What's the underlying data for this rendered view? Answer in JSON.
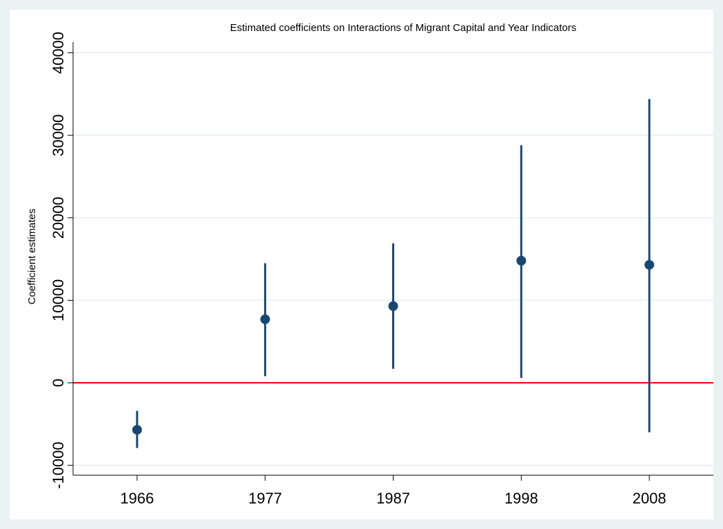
{
  "chart_data": {
    "type": "errorbar",
    "title": "Estimated coefficients on Interactions of Migrant Capital and Year Indicators",
    "y_label": "Coefficient estimates",
    "categories": [
      "1966",
      "1977",
      "1987",
      "1998",
      "2008"
    ],
    "series": [
      {
        "color": "#1a476f",
        "values": [
          -5700,
          7700,
          9300,
          14800,
          14300
        ],
        "lower": [
          -7900,
          800,
          1700,
          600,
          -6000
        ],
        "upper": [
          -3400,
          14500,
          16900,
          28800,
          34400
        ]
      }
    ],
    "ylim": [
      -11200,
      41300
    ],
    "yticks": [
      -10000,
      0,
      10000,
      20000,
      30000,
      40000
    ],
    "grid": true,
    "reference_line": {
      "value": 0,
      "color": "#ff0000"
    }
  }
}
